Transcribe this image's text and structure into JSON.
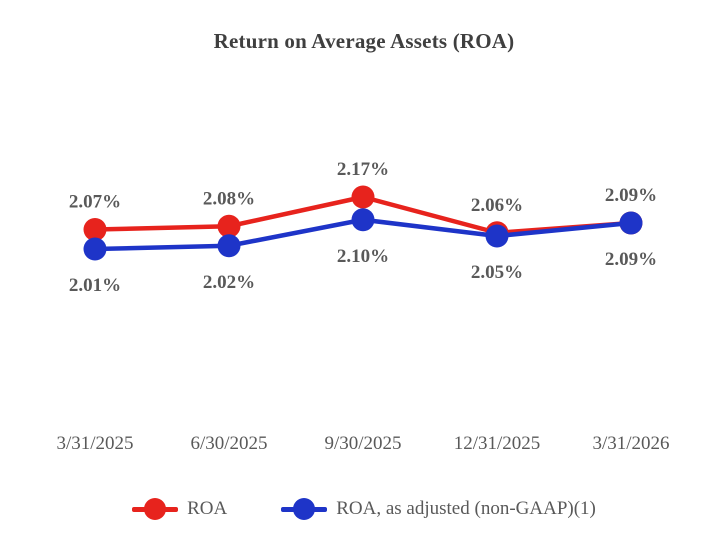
{
  "chart_data": {
    "type": "line",
    "title": "Return on Average Assets (ROA)",
    "categories": [
      "3/31/2025",
      "6/30/2025",
      "9/30/2025",
      "12/31/2025",
      "3/31/2026"
    ],
    "series": [
      {
        "name": "ROA",
        "color": "#e7231d",
        "values": [
          2.07,
          2.08,
          2.17,
          2.06,
          2.09
        ],
        "labels": [
          "2.07%",
          "2.08%",
          "2.17%",
          "2.06%",
          "2.09%"
        ],
        "label_position": "above"
      },
      {
        "name": "ROA, as adjusted (non-GAAP)(1)",
        "color": "#1e34c8",
        "values": [
          2.01,
          2.02,
          2.1,
          2.05,
          2.09
        ],
        "labels": [
          "2.01%",
          "2.02%",
          "2.10%",
          "2.05%",
          "2.09%"
        ],
        "label_position": "below"
      }
    ],
    "ylim": [
      1.95,
      2.25
    ],
    "xlabel": "",
    "ylabel": "",
    "grid": false,
    "axes_visible": false,
    "legend_position": "bottom"
  },
  "styles": {
    "background": "#ffffff",
    "title_color": "#3f3f3f",
    "text_color": "#595959"
  }
}
